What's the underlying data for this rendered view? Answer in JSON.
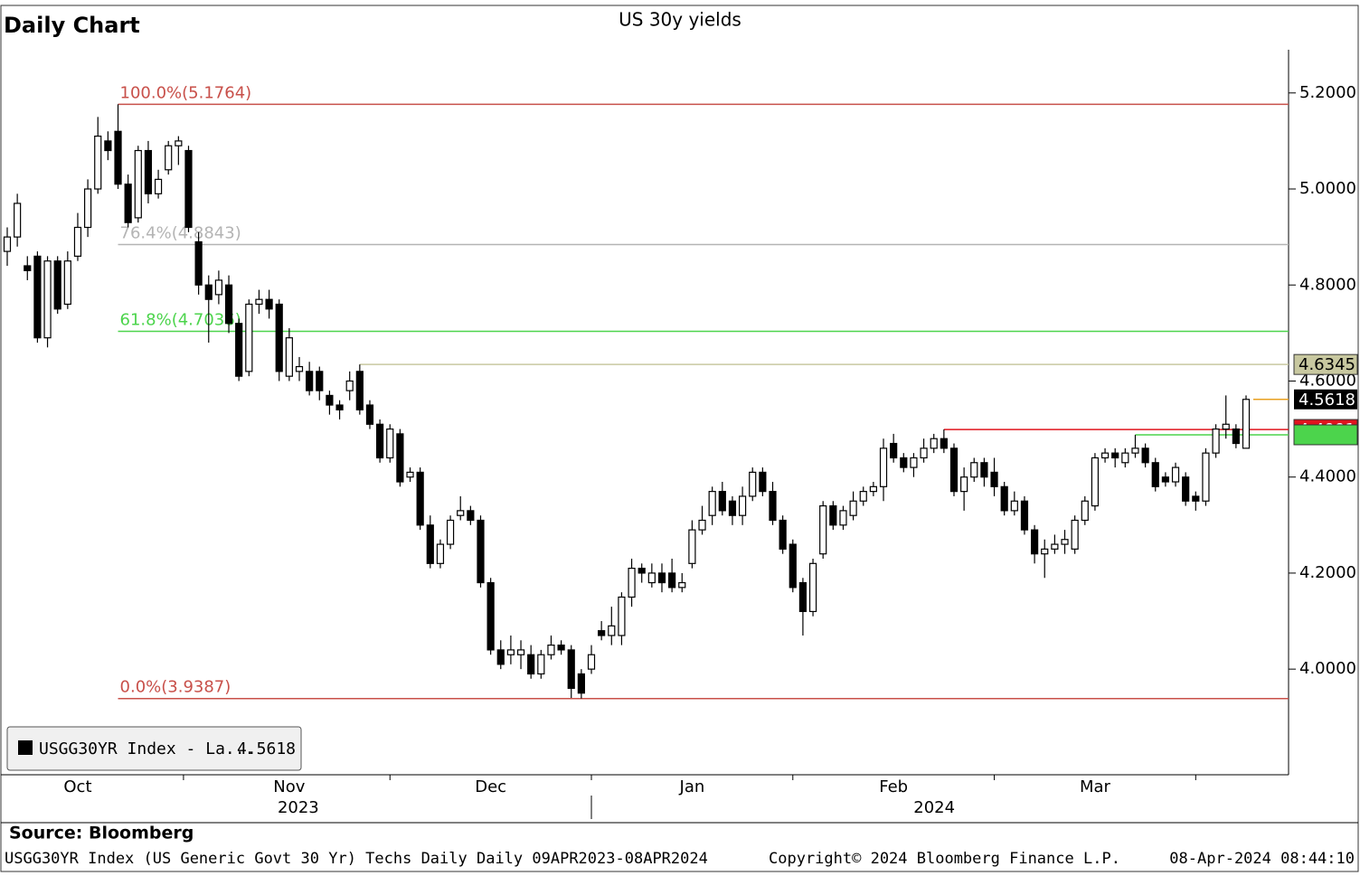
{
  "chart_data": {
    "type": "candlestick",
    "header": "Daily Chart",
    "title": "US 30y yields",
    "series_name": "USGG30YR Index - La...",
    "open": [
      4.87,
      4.9,
      4.84,
      4.86,
      4.69,
      4.85,
      4.76,
      4.86,
      4.92,
      5.0,
      5.1,
      5.12,
      5.01,
      4.94,
      5.08,
      4.99,
      5.04,
      5.09,
      5.08,
      4.89,
      4.8,
      4.78,
      4.8,
      4.72,
      4.62,
      4.76,
      4.77,
      4.76,
      4.61,
      4.62,
      4.62,
      4.62,
      4.57,
      4.55,
      4.58,
      4.62,
      4.55,
      4.51,
      4.44,
      4.49,
      4.4,
      4.41,
      4.3,
      4.22,
      4.26,
      4.32,
      4.33,
      4.31,
      4.18,
      4.04,
      4.03,
      4.03,
      4.03,
      3.99,
      4.03,
      4.05,
      4.04,
      3.99,
      4.0,
      4.08,
      4.07,
      4.07,
      4.15,
      4.21,
      4.18,
      4.2,
      4.2,
      4.17,
      4.22,
      4.29,
      4.32,
      4.37,
      4.35,
      4.32,
      4.36,
      4.41,
      4.37,
      4.31,
      4.26,
      4.18,
      4.12,
      4.24,
      4.34,
      4.3,
      4.32,
      4.35,
      4.37,
      4.38,
      4.47,
      4.44,
      4.42,
      4.44,
      4.46,
      4.48,
      4.46,
      4.37,
      4.4,
      4.43,
      4.41,
      4.38,
      4.33,
      4.35,
      4.29,
      4.24,
      4.25,
      4.26,
      4.25,
      4.31,
      4.34,
      4.44,
      4.45,
      4.43,
      4.45,
      4.46,
      4.43,
      4.4,
      4.39,
      4.4,
      4.36,
      4.35,
      4.45,
      4.5,
      4.5,
      4.46
    ],
    "high": [
      4.92,
      4.99,
      4.86,
      4.87,
      4.86,
      4.86,
      4.87,
      4.95,
      5.02,
      5.15,
      5.12,
      5.1764,
      5.03,
      5.09,
      5.1,
      5.04,
      5.1,
      5.11,
      5.09,
      4.91,
      4.82,
      4.83,
      4.82,
      4.73,
      4.77,
      4.79,
      4.79,
      4.77,
      4.71,
      4.65,
      4.64,
      4.63,
      4.58,
      4.56,
      4.62,
      4.6345,
      4.56,
      4.52,
      4.51,
      4.5,
      4.42,
      4.42,
      4.32,
      4.27,
      4.32,
      4.36,
      4.34,
      4.32,
      4.19,
      4.06,
      4.07,
      4.06,
      4.05,
      4.04,
      4.07,
      4.06,
      4.05,
      4.0,
      4.05,
      4.1,
      4.13,
      4.16,
      4.23,
      4.22,
      4.22,
      4.22,
      4.23,
      4.2,
      4.31,
      4.34,
      4.38,
      4.39,
      4.36,
      4.38,
      4.42,
      4.42,
      4.39,
      4.32,
      4.27,
      4.19,
      4.23,
      4.35,
      4.35,
      4.34,
      4.37,
      4.38,
      4.39,
      4.48,
      4.49,
      4.45,
      4.45,
      4.48,
      4.49,
      4.4991,
      4.47,
      4.42,
      4.44,
      4.44,
      4.44,
      4.39,
      4.37,
      4.36,
      4.3,
      4.27,
      4.28,
      4.29,
      4.32,
      4.36,
      4.45,
      4.46,
      4.46,
      4.46,
      4.488,
      4.47,
      4.44,
      4.41,
      4.43,
      4.41,
      4.37,
      4.46,
      4.51,
      4.57,
      4.51,
      4.57
    ],
    "low": [
      4.84,
      4.88,
      4.81,
      4.68,
      4.67,
      4.74,
      4.75,
      4.85,
      4.9,
      4.99,
      5.06,
      5.0,
      4.92,
      4.93,
      4.97,
      4.98,
      5.03,
      5.05,
      4.91,
      4.78,
      4.68,
      4.76,
      4.7,
      4.6,
      4.61,
      4.74,
      4.73,
      4.6,
      4.6,
      4.6,
      4.57,
      4.56,
      4.53,
      4.52,
      4.56,
      4.53,
      4.5,
      4.43,
      4.43,
      4.38,
      4.39,
      4.29,
      4.21,
      4.21,
      4.25,
      4.31,
      4.3,
      4.17,
      4.03,
      4.0,
      4.01,
      4.0,
      3.98,
      3.98,
      4.02,
      4.03,
      3.94,
      3.9387,
      3.99,
      4.06,
      4.05,
      4.05,
      4.13,
      4.18,
      4.17,
      4.16,
      4.16,
      4.16,
      4.21,
      4.28,
      4.3,
      4.32,
      4.3,
      4.3,
      4.35,
      4.36,
      4.3,
      4.24,
      4.16,
      4.07,
      4.11,
      4.23,
      4.29,
      4.29,
      4.31,
      4.34,
      4.36,
      4.35,
      4.43,
      4.41,
      4.4,
      4.43,
      4.45,
      4.45,
      4.36,
      4.33,
      4.39,
      4.38,
      4.36,
      4.32,
      4.32,
      4.28,
      4.22,
      4.19,
      4.24,
      4.24,
      4.24,
      4.3,
      4.33,
      4.43,
      4.42,
      4.42,
      4.44,
      4.42,
      4.37,
      4.38,
      4.38,
      4.34,
      4.33,
      4.34,
      4.44,
      4.48,
      4.46,
      4.46
    ],
    "close": [
      4.9,
      4.97,
      4.83,
      4.69,
      4.85,
      4.75,
      4.85,
      4.92,
      5.0,
      5.11,
      5.08,
      5.01,
      4.93,
      5.08,
      4.99,
      5.02,
      5.09,
      5.1,
      4.92,
      4.8,
      4.77,
      4.81,
      4.72,
      4.61,
      4.76,
      4.77,
      4.75,
      4.62,
      4.69,
      4.63,
      4.58,
      4.58,
      4.55,
      4.54,
      4.6,
      4.54,
      4.51,
      4.44,
      4.5,
      4.39,
      4.41,
      4.3,
      4.22,
      4.26,
      4.31,
      4.33,
      4.31,
      4.18,
      4.04,
      4.01,
      4.04,
      4.04,
      3.99,
      4.03,
      4.05,
      4.04,
      3.96,
      3.95,
      4.03,
      4.07,
      4.09,
      4.15,
      4.21,
      4.2,
      4.2,
      4.18,
      4.17,
      4.18,
      4.29,
      4.31,
      4.37,
      4.33,
      4.32,
      4.36,
      4.41,
      4.37,
      4.31,
      4.25,
      4.17,
      4.12,
      4.22,
      4.34,
      4.3,
      4.33,
      4.35,
      4.37,
      4.38,
      4.46,
      4.44,
      4.42,
      4.44,
      4.46,
      4.48,
      4.46,
      4.37,
      4.4,
      4.43,
      4.4,
      4.38,
      4.33,
      4.35,
      4.29,
      4.24,
      4.25,
      4.26,
      4.27,
      4.31,
      4.35,
      4.44,
      4.45,
      4.44,
      4.45,
      4.46,
      4.43,
      4.38,
      4.39,
      4.42,
      4.35,
      4.35,
      4.45,
      4.5,
      4.51,
      4.47,
      4.5618
    ],
    "categories": [
      null,
      null,
      null,
      null,
      null,
      null,
      null,
      "Oct",
      null,
      null,
      null,
      null,
      null,
      null,
      null,
      null,
      null,
      null,
      null,
      null,
      null,
      null,
      null,
      null,
      null,
      null,
      null,
      null,
      "Nov",
      null,
      null,
      null,
      null,
      null,
      null,
      null,
      null,
      null,
      null,
      null,
      null,
      null,
      null,
      null,
      null,
      null,
      null,
      null,
      "Dec",
      null,
      null,
      null,
      null,
      null,
      null,
      null,
      null,
      null,
      null,
      null,
      null,
      null,
      null,
      null,
      null,
      null,
      null,
      null,
      "Jan",
      null,
      null,
      null,
      null,
      null,
      null,
      null,
      null,
      null,
      null,
      null,
      null,
      null,
      null,
      null,
      null,
      null,
      null,
      null,
      "Feb",
      null,
      null,
      null,
      null,
      null,
      null,
      null,
      null,
      null,
      null,
      null,
      null,
      null,
      null,
      null,
      null,
      null,
      null,
      null,
      "Mar",
      null,
      null,
      null,
      null,
      null,
      null,
      null,
      null,
      null,
      null,
      null,
      null,
      null,
      null,
      null
    ],
    "years": [
      "2023",
      "2024"
    ],
    "ylim": [
      3.78,
      5.29
    ],
    "yticks": [
      {
        "value": 4,
        "label": "4.0000"
      },
      {
        "value": 4.2,
        "label": "4.2000"
      },
      {
        "value": 4.4,
        "label": "4.4000"
      },
      {
        "value": 4.6,
        "label": "4.6000"
      },
      {
        "value": 4.8,
        "label": "4.8000"
      },
      {
        "value": 5,
        "label": "5.0000"
      },
      {
        "value": 5.2,
        "label": "5.2000"
      }
    ],
    "fib_levels": [
      {
        "value": 5.1764,
        "label": "100.0%(5.1764)",
        "color": "#c8504a"
      },
      {
        "value": 4.8843,
        "label": "76.4%(4.8843)",
        "color": "#b4b4b4"
      },
      {
        "value": 4.7036,
        "label": "61.8%(4.7036)",
        "color": "#4cd44c"
      },
      {
        "value": 3.9387,
        "label": "0.0%(3.9387)",
        "color": "#c8504a"
      }
    ],
    "level_lines": [
      {
        "value": 4.6345,
        "color": "#c8c8a0"
      },
      {
        "value": 4.4991,
        "color": "#e0141e"
      },
      {
        "value": 4.488,
        "color": "#4cd44c"
      }
    ],
    "source": "Source: Bloomberg",
    "footer_left": "USGG30YR Index (US Generic Govt 30 Yr) Techs Daily  Daily 09APR2023-08APR2024",
    "footer_center": "Copyright© 2024 Bloomberg Finance L.P.",
    "footer_right": "08-Apr-2024 08:44:10"
  }
}
